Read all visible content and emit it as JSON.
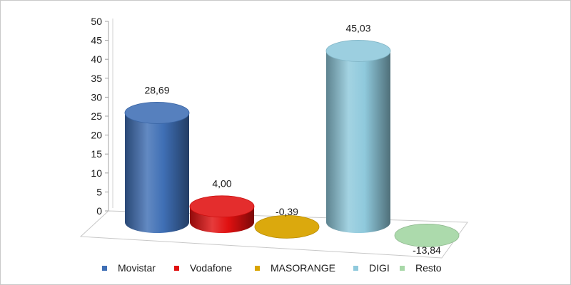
{
  "chart_data": {
    "type": "bar",
    "style": "3d-cylinder",
    "categories": [
      "Movistar",
      "Vodafone",
      "MASORANGE",
      "DIGI",
      "Resto"
    ],
    "values": [
      28.69,
      4.0,
      -0.39,
      45.03,
      -13.84
    ],
    "value_labels": [
      "28,69",
      "4,00",
      "-0,39",
      "45,03",
      "-13,84"
    ],
    "ylim": [
      0,
      50
    ],
    "yticks": [
      0,
      5,
      10,
      15,
      20,
      25,
      30,
      35,
      40,
      45,
      50
    ],
    "colors": [
      "#3f6fb5",
      "#e01010",
      "#d9a400",
      "#8fc9dc",
      "#a8d8a8"
    ],
    "legend_position": "bottom",
    "title": "",
    "xlabel": "",
    "ylabel": ""
  }
}
